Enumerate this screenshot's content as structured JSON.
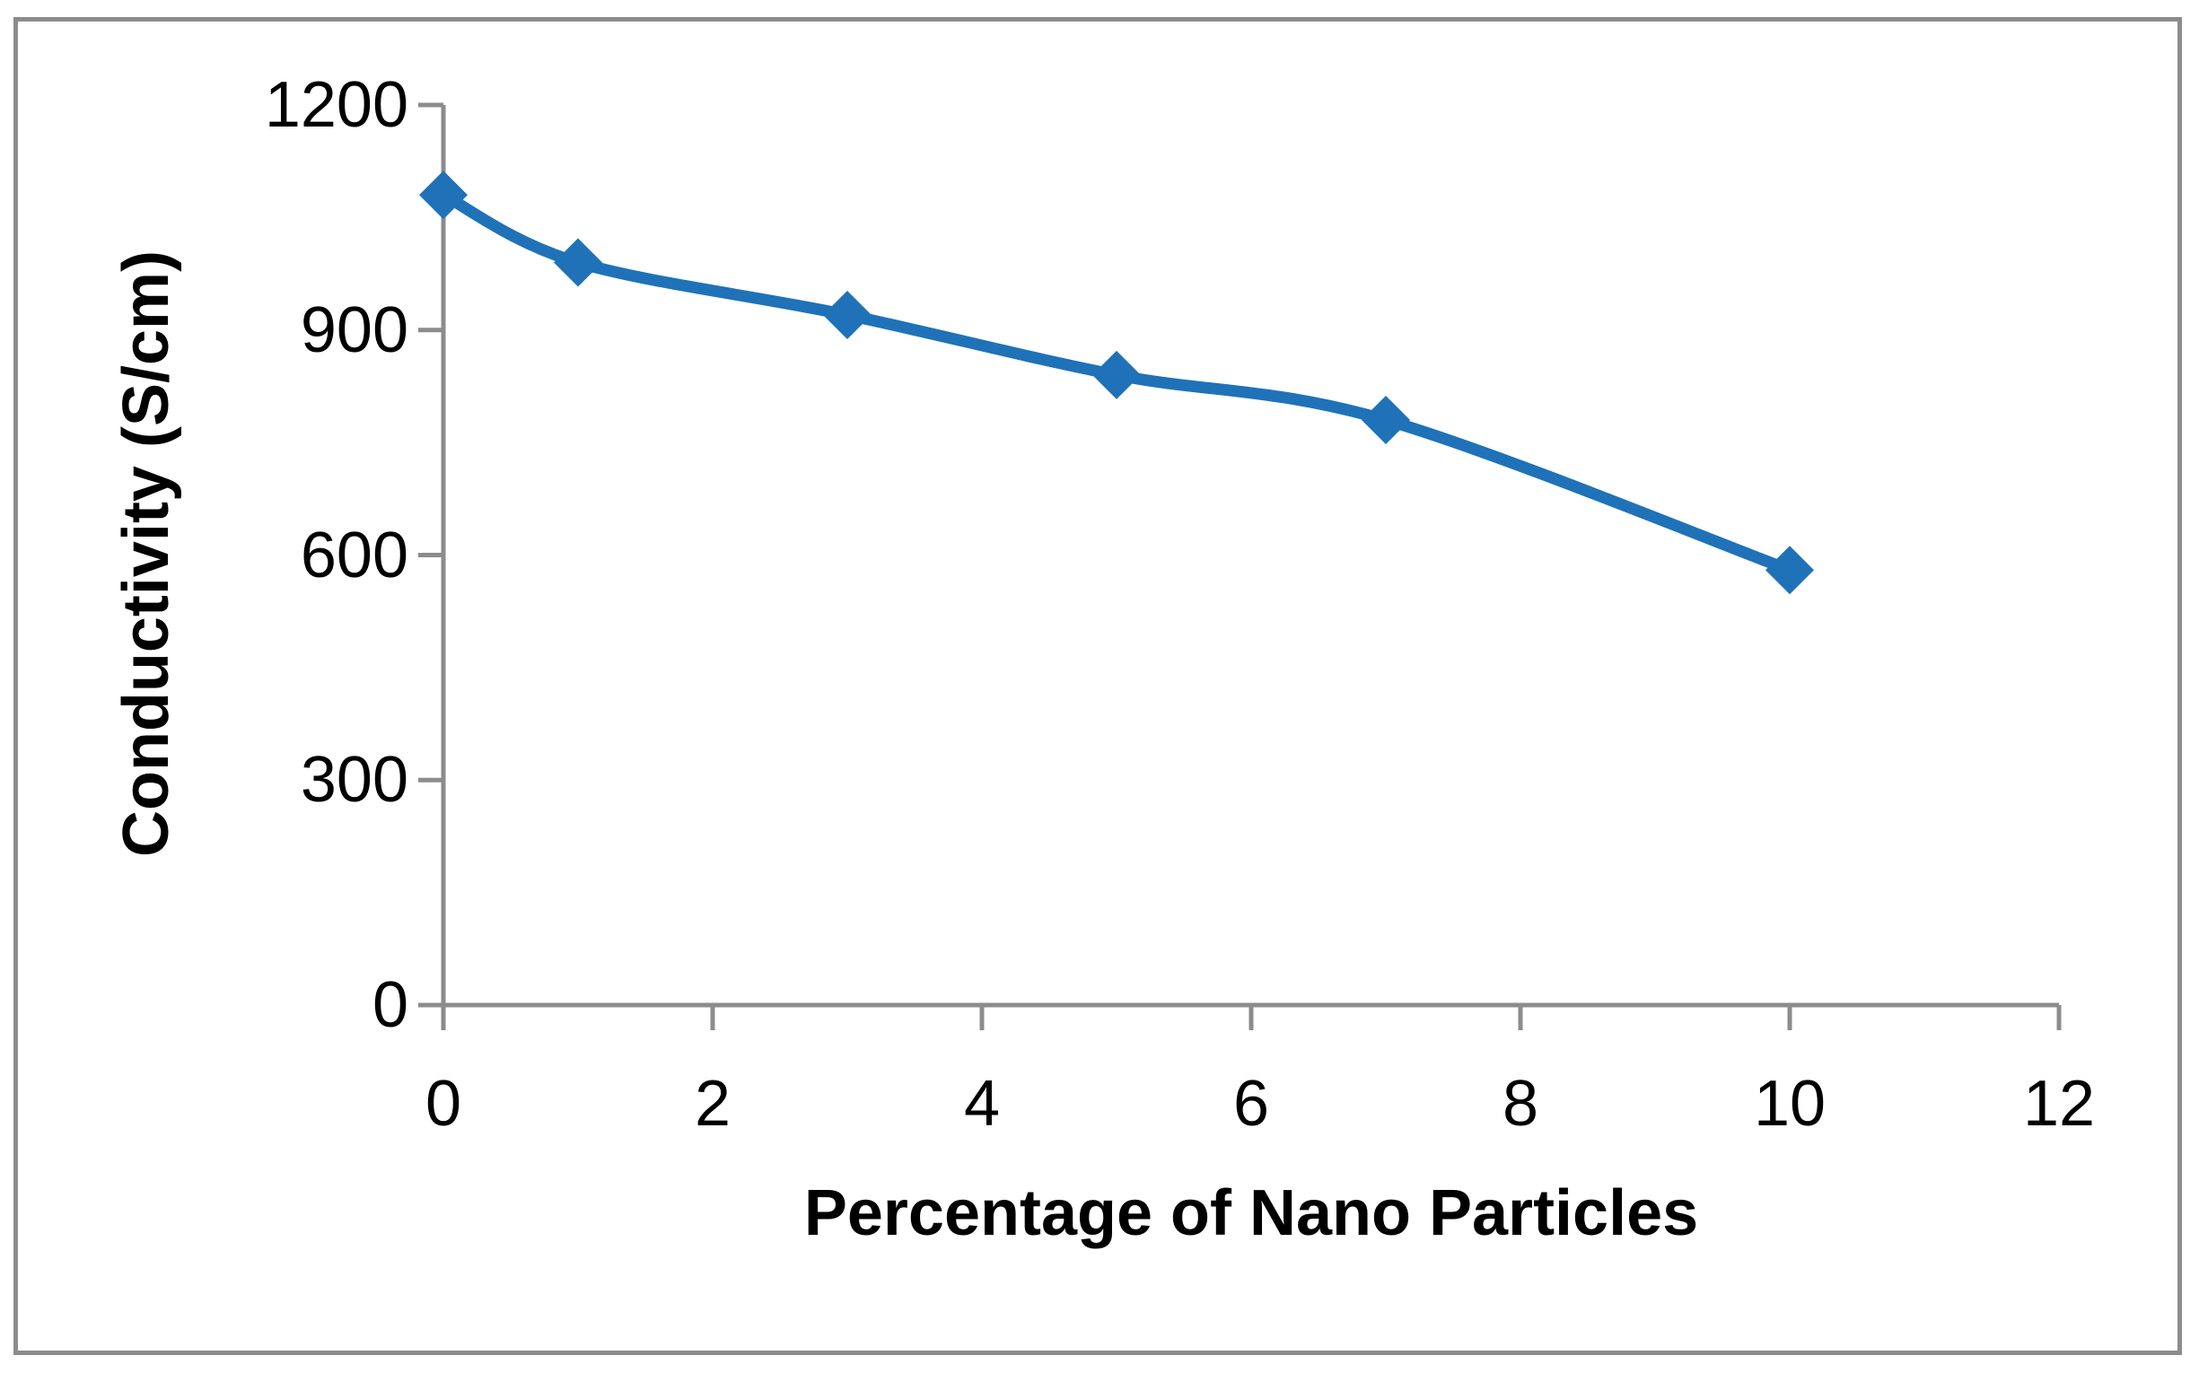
{
  "chart_data": {
    "type": "line",
    "title": "",
    "xlabel": "Percentage of Nano Particles",
    "ylabel": "Conductivity (S/cm)",
    "series": [
      {
        "x": [
          0,
          1,
          3,
          5,
          7,
          10
        ],
        "y": [
          1080,
          990,
          920,
          840,
          780,
          580
        ],
        "color": "#1F72B8",
        "marker": "diamond",
        "smooth": true,
        "line_width": 13,
        "marker_size": 27
      }
    ],
    "xlim": [
      0,
      12
    ],
    "ylim": [
      0,
      1200
    ],
    "x_ticks": [
      0,
      2,
      4,
      6,
      8,
      10,
      12
    ],
    "y_ticks": [
      0,
      300,
      600,
      900,
      1200
    ],
    "grid": false,
    "legend": "none",
    "axis_color": "#8C8C8C",
    "text_color": "#000000",
    "frame_border_color": "#8C8C8C",
    "background_color": "#FFFFFF"
  }
}
